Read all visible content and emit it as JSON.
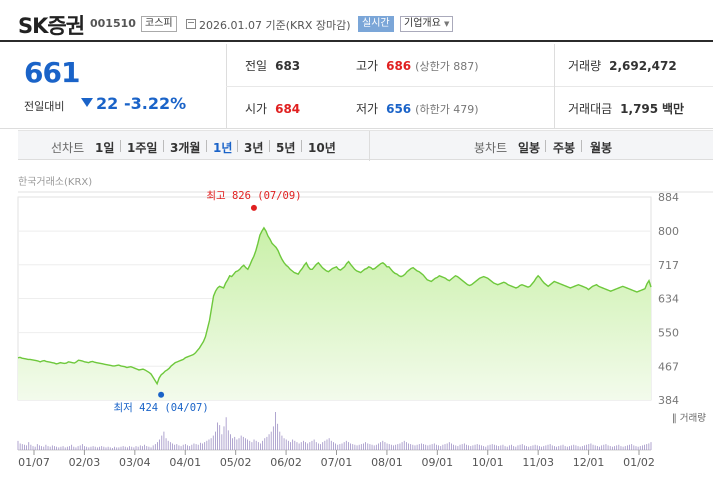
{
  "header": {
    "name": "SK증권",
    "code": "001510",
    "market": "코스피",
    "date_text": "2026.01.07 기준(KRX 장마감)",
    "realtime_label": "실시간",
    "company_label": "기업개요"
  },
  "price": {
    "current": "661",
    "change_label": "전일대비",
    "change": "22",
    "change_pct": "-3.22%",
    "direction": "down"
  },
  "stats": {
    "prev_close": {
      "label": "전일",
      "value": "683"
    },
    "open": {
      "label": "시가",
      "value": "684"
    },
    "high": {
      "label": "고가",
      "value": "686",
      "limit": "(상한가 887)"
    },
    "low": {
      "label": "저가",
      "value": "656",
      "limit": "(하한가 479)"
    },
    "volume": {
      "label": "거래량",
      "value": "2,692,472"
    },
    "amount": {
      "label": "거래대금",
      "value": "1,795",
      "unit": "백만"
    }
  },
  "periods": {
    "line_label": "선차트",
    "line_options": [
      "1일",
      "1주일",
      "3개월",
      "1년",
      "3년",
      "5년",
      "10년"
    ],
    "active": "1년",
    "candle_label": "봉차트",
    "candle_options": [
      "일봉",
      "주봉",
      "월봉"
    ]
  },
  "source_label": "한국거래소(KRX)",
  "colors": {
    "blue": "#1a63c8",
    "red": "#e02020",
    "line": "#6ec83c",
    "area": "#c9f0a8"
  },
  "chart_data": {
    "type": "area",
    "y_ticks": [
      "884",
      "800",
      "717",
      "634",
      "550",
      "467",
      "384"
    ],
    "ylim": [
      384,
      884
    ],
    "x_ticks": [
      "01/07",
      "02/03",
      "03/04",
      "04/01",
      "05/02",
      "06/02",
      "07/01",
      "08/01",
      "09/01",
      "10/01",
      "11/03",
      "12/01",
      "01/02"
    ],
    "high_label": "최고 826 (07/09)",
    "low_label": "최저 424 (04/07)",
    "volume_label": "거래량",
    "series": [
      {
        "values": [
          488,
          489,
          487,
          486,
          485,
          484,
          484,
          483,
          482,
          481,
          480,
          478,
          480,
          481,
          479,
          478,
          477,
          476,
          475,
          473,
          474,
          476,
          475,
          474,
          475,
          478,
          477,
          476,
          475,
          478,
          482,
          481,
          480,
          478,
          477,
          476,
          478,
          479,
          477,
          476,
          475,
          474,
          473,
          472,
          471,
          470,
          469,
          468,
          468,
          469,
          470,
          468,
          467,
          466,
          464,
          465,
          466,
          464,
          462,
          460,
          458,
          459,
          460,
          458,
          455,
          452,
          448,
          440,
          432,
          424,
          438,
          446,
          450,
          455,
          458,
          462,
          468,
          472,
          476,
          478,
          480,
          482,
          484,
          488,
          490,
          492,
          494,
          496,
          500,
          506,
          512,
          520,
          528,
          540,
          560,
          580,
          610,
          640,
          652,
          660,
          664,
          662,
          660,
          672,
          680,
          690,
          688,
          694,
          700,
          702,
          706,
          712,
          716,
          710,
          706,
          716,
          728,
          738,
          752,
          770,
          790,
          800,
          808,
          800,
          788,
          780,
          770,
          765,
          760,
          752,
          740,
          730,
          722,
          716,
          712,
          706,
          702,
          698,
          696,
          694,
          702,
          708,
          716,
          722,
          712,
          706,
          706,
          712,
          718,
          722,
          716,
          710,
          706,
          702,
          700,
          704,
          708,
          710,
          712,
          706,
          704,
          708,
          712,
          720,
          725,
          718,
          712,
          706,
          702,
          700,
          698,
          702,
          706,
          708,
          712,
          710,
          706,
          708,
          712,
          716,
          720,
          722,
          718,
          712,
          712,
          706,
          700,
          696,
          694,
          690,
          688,
          690,
          694,
          700,
          704,
          708,
          710,
          706,
          702,
          700,
          696,
          692,
          686,
          680,
          678,
          676,
          680,
          684,
          686,
          690,
          688,
          686,
          684,
          680,
          678,
          682,
          686,
          690,
          688,
          684,
          680,
          676,
          672,
          668,
          666,
          668,
          672,
          676,
          680,
          684,
          686,
          688,
          686,
          684,
          680,
          676,
          672,
          670,
          668,
          670,
          672,
          674,
          672,
          668,
          666,
          664,
          662,
          660,
          662,
          666,
          668,
          666,
          664,
          662,
          664,
          670,
          676,
          684,
          690,
          685,
          678,
          672,
          668,
          664,
          668,
          672,
          676,
          674,
          672,
          670,
          668,
          666,
          664,
          662,
          660,
          662,
          664,
          666,
          668,
          666,
          664,
          662,
          660,
          656,
          660,
          664,
          666,
          668,
          664,
          662,
          660,
          658,
          656,
          654,
          652,
          654,
          656,
          658,
          660,
          662,
          664,
          662,
          660,
          658,
          656,
          654,
          652,
          650,
          652,
          654,
          656,
          658,
          670,
          678,
          662
        ]
      }
    ],
    "volume": [
      14,
      10,
      9,
      8,
      7,
      12,
      8,
      6,
      5,
      9,
      7,
      6,
      5,
      8,
      6,
      5,
      7,
      6,
      5,
      4,
      5,
      6,
      4,
      5,
      6,
      8,
      5,
      4,
      6,
      7,
      9,
      6,
      5,
      4,
      5,
      6,
      5,
      4,
      5,
      6,
      5,
      4,
      5,
      4,
      3,
      5,
      4,
      4,
      5,
      6,
      5,
      4,
      6,
      5,
      4,
      6,
      5,
      7,
      6,
      8,
      6,
      5,
      4,
      7,
      9,
      12,
      16,
      22,
      28,
      18,
      14,
      12,
      10,
      8,
      9,
      7,
      6,
      8,
      9,
      7,
      6,
      8,
      10,
      9,
      8,
      11,
      10,
      12,
      14,
      16,
      18,
      22,
      28,
      42,
      38,
      24,
      36,
      50,
      30,
      24,
      18,
      20,
      16,
      18,
      22,
      20,
      18,
      16,
      14,
      12,
      16,
      14,
      12,
      10,
      14,
      18,
      20,
      24,
      28,
      36,
      58,
      40,
      28,
      22,
      18,
      16,
      14,
      12,
      16,
      14,
      12,
      10,
      12,
      14,
      12,
      10,
      12,
      14,
      16,
      12,
      10,
      9,
      12,
      14,
      16,
      18,
      14,
      12,
      10,
      8,
      9,
      10,
      12,
      14,
      12,
      10,
      9,
      8,
      7,
      8,
      9,
      10,
      12,
      10,
      9,
      8,
      7,
      8,
      10,
      12,
      14,
      12,
      10,
      9,
      8,
      7,
      8,
      9,
      10,
      12,
      14,
      12,
      10,
      9,
      8,
      7,
      8,
      9,
      10,
      9,
      8,
      7,
      8,
      9,
      10,
      8,
      7,
      6,
      8,
      9,
      10,
      12,
      10,
      8,
      7,
      6,
      8,
      9,
      10,
      8,
      7,
      6,
      7,
      8,
      9,
      8,
      7,
      6,
      5,
      7,
      8,
      9,
      8,
      7,
      6,
      7,
      8,
      6,
      5,
      7,
      8,
      6,
      5,
      7,
      8,
      9,
      7,
      6,
      5,
      6,
      7,
      8,
      7,
      6,
      5,
      6,
      7,
      8,
      9,
      7,
      6,
      5,
      6,
      7,
      8,
      6,
      5,
      6,
      7,
      8,
      7,
      6,
      5,
      6,
      7,
      8,
      9,
      10,
      8,
      7,
      6,
      5,
      7,
      8,
      9,
      7,
      6,
      5,
      6,
      7,
      8,
      6,
      5,
      6,
      7,
      8,
      9,
      7,
      6,
      5,
      6,
      7,
      8,
      9,
      10,
      12
    ]
  }
}
